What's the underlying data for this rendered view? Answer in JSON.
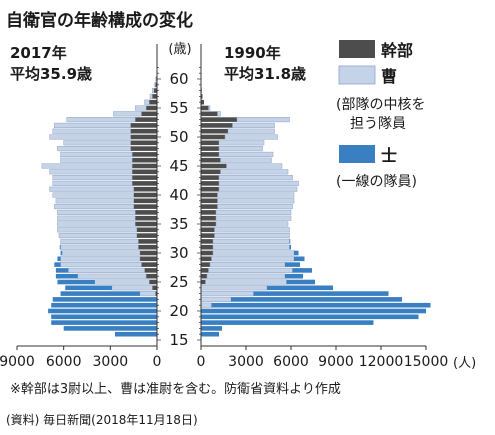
{
  "chart_data": {
    "type": "bar",
    "title": "自衛官の年齢構成の変化",
    "unit": "(人)",
    "age_axis_label": "(歳)",
    "age_ticks": [
      15,
      20,
      25,
      30,
      35,
      40,
      45,
      50,
      55,
      60
    ],
    "left_ticks": [
      9000,
      6000,
      3000,
      0
    ],
    "right_ticks": [
      0,
      3000,
      6000,
      9000,
      12000,
      15000
    ],
    "xlim": [
      0,
      9000
    ],
    "xlim_right": [
      0,
      15000
    ],
    "ages": [
      16,
      17,
      18,
      19,
      20,
      21,
      22,
      23,
      24,
      25,
      26,
      27,
      28,
      29,
      30,
      31,
      32,
      33,
      34,
      35,
      36,
      37,
      38,
      39,
      40,
      41,
      42,
      43,
      44,
      45,
      46,
      47,
      48,
      49,
      50,
      51,
      52,
      53,
      54,
      55,
      56,
      57,
      58,
      59,
      60
    ],
    "categories": [
      {
        "key": "kanbu",
        "label": "幹部",
        "color": "#4d4d4d"
      },
      {
        "key": "so",
        "label": "曹",
        "color": "#c5d3e8",
        "note": [
          "(部隊の中核を",
          "担う隊員"
        ]
      },
      {
        "key": "shi",
        "label": "士",
        "color": "#3a7fc1",
        "note": [
          "(一線の隊員)"
        ]
      }
    ],
    "panels": [
      {
        "year_label": "2017年",
        "avg_label": "平均35.9歳",
        "side": "left",
        "kanbu": [
          0,
          0,
          0,
          0,
          0,
          0,
          0,
          100,
          300,
          500,
          700,
          800,
          1000,
          1100,
          1100,
          1200,
          1200,
          1300,
          1300,
          1400,
          1400,
          1400,
          1500,
          1500,
          1500,
          1500,
          1600,
          1600,
          1600,
          1600,
          1600,
          1600,
          1700,
          1700,
          1700,
          1700,
          1700,
          1400,
          1000,
          700,
          500,
          300,
          200,
          100,
          50
        ],
        "so": [
          0,
          0,
          0,
          0,
          0,
          0,
          0,
          1000,
          2600,
          3500,
          4400,
          4900,
          5200,
          5100,
          5000,
          5000,
          5000,
          5000,
          5100,
          5000,
          5000,
          5000,
          5100,
          5000,
          5200,
          5400,
          5100,
          5100,
          5300,
          5800,
          4600,
          4600,
          4700,
          4300,
          5200,
          5000,
          4900,
          4400,
          1800,
          700,
          300,
          150,
          100,
          50,
          30
        ],
        "shi": [
          2700,
          6000,
          6800,
          6800,
          7000,
          6800,
          6700,
          5100,
          3000,
          2400,
          1400,
          800,
          400,
          200,
          100,
          50,
          0,
          0,
          0,
          0,
          0,
          0,
          0,
          0,
          0,
          0,
          0,
          0,
          0,
          0,
          0,
          0,
          0,
          0,
          0,
          0,
          0,
          0,
          0,
          0,
          0,
          0,
          0,
          0,
          0
        ]
      },
      {
        "year_label": "1990年",
        "avg_label": "平均31.8歳",
        "side": "right",
        "kanbu": [
          0,
          0,
          0,
          0,
          0,
          0,
          0,
          0,
          0,
          300,
          400,
          500,
          600,
          700,
          800,
          800,
          800,
          900,
          900,
          1000,
          1000,
          1000,
          1100,
          1100,
          1100,
          1200,
          1200,
          1200,
          1300,
          1700,
          1300,
          1200,
          1200,
          1200,
          1600,
          1800,
          2100,
          2400,
          1100,
          500,
          200,
          100,
          50,
          0,
          0
        ],
        "so": [
          0,
          0,
          0,
          0,
          0,
          700,
          2000,
          3500,
          4400,
          5400,
          5200,
          5600,
          5000,
          5500,
          5400,
          5100,
          5100,
          5000,
          5000,
          4800,
          5000,
          5000,
          5000,
          5100,
          5100,
          5200,
          5300,
          4900,
          4500,
          3700,
          3400,
          3600,
          2900,
          3000,
          3500,
          3100,
          2800,
          3500,
          200,
          100,
          0,
          0,
          0,
          0,
          0
        ],
        "shi": [
          1200,
          1400,
          11500,
          14500,
          15000,
          14600,
          11400,
          9000,
          4400,
          1900,
          1200,
          1300,
          1000,
          700,
          300,
          100,
          50,
          0,
          0,
          0,
          0,
          0,
          0,
          0,
          0,
          0,
          0,
          0,
          0,
          0,
          0,
          0,
          0,
          0,
          0,
          0,
          0,
          0,
          0,
          0,
          0,
          0,
          0,
          0,
          0
        ]
      }
    ],
    "footnote": "※幹部は3尉以上、曹は准尉を含む。防衛省資料より作成",
    "source": "(資料) 毎日新聞(2018年11月18日)"
  }
}
